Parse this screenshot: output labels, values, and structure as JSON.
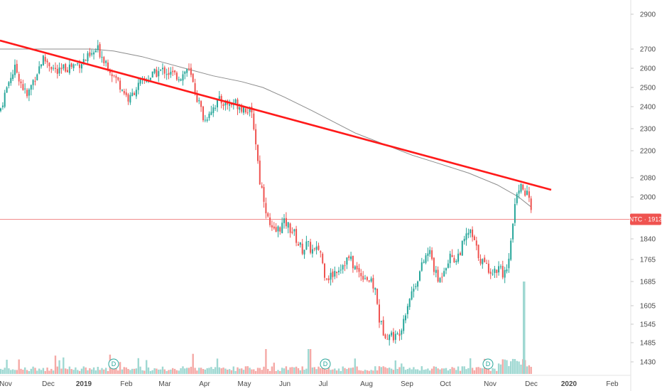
{
  "chart_data": {
    "type": "candlestick",
    "ticker": "NTC",
    "last_price": "1913",
    "y_axis": {
      "ticks": [
        "2900",
        "2700",
        "2600",
        "2500",
        "2400",
        "2300",
        "2200",
        "2080",
        "2000",
        "1840",
        "1765",
        "1685",
        "1605",
        "1545",
        "1485",
        "1430"
      ],
      "scale": "log"
    },
    "x_axis": {
      "ticks": [
        "Nov",
        "Dec",
        "2019",
        "Feb",
        "Mar",
        "Apr",
        "May",
        "Jun",
        "Jul",
        "Aug",
        "Sep",
        "Oct",
        "Nov",
        "Dec",
        "2020",
        "Feb"
      ]
    },
    "dividend_markers": [
      "D",
      "D",
      "D"
    ],
    "colors": {
      "up": "#26a69a",
      "down": "#ef5350",
      "up_volume": "#9fd8d2",
      "down_volume": "#f5a9a6",
      "moving_average": "#8c8c8c",
      "trendline": "#ff1a1a",
      "price_line": "#f28b8b",
      "price_tag": "#ef5350",
      "dividend": "#26a69a"
    },
    "indicators": [
      "moving-average",
      "trendline",
      "volume"
    ]
  }
}
